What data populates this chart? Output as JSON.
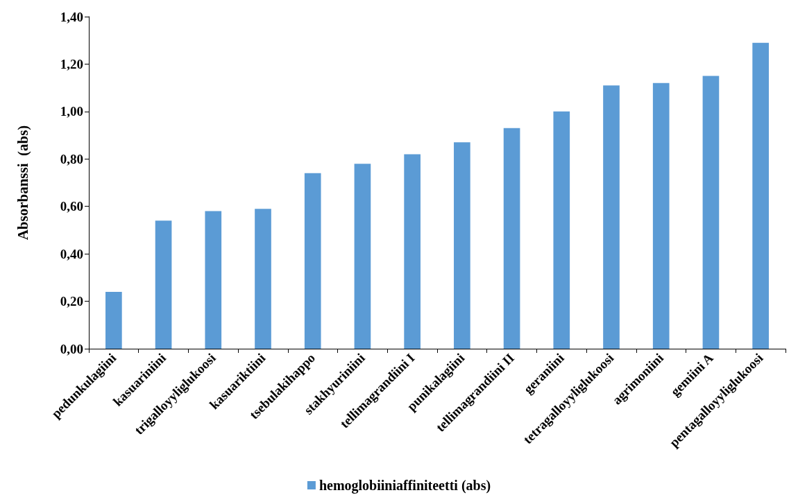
{
  "chart_data": {
    "type": "bar",
    "ylabel": "Absorbanssi  (abs)",
    "categories": [
      "pedunkulagiini",
      "kasuariniini",
      "trigalloyyliglukoosi",
      "kasuariktiini",
      "tsebulakihappo",
      "stakhyuriniini",
      "tellimagrandiini I",
      "punikalagiini",
      "tellimagrandiini II",
      "geraniini",
      "tetragalloyyliglukoosi",
      "agrimoniini",
      "gemiini A",
      "pentagalloyyliglukoosi"
    ],
    "series": [
      {
        "name": "hemoglobiiniaffiniteetti (abs)",
        "color": "#5b9bd5",
        "values": [
          0.24,
          0.54,
          0.58,
          0.59,
          0.74,
          0.78,
          0.82,
          0.87,
          0.93,
          1.0,
          1.11,
          1.12,
          1.15,
          1.29
        ]
      }
    ],
    "ylim": [
      0,
      1.4
    ],
    "yticks": [
      {
        "value": 0,
        "label": "0,00"
      },
      {
        "value": 0.2,
        "label": "0,20"
      },
      {
        "value": 0.4,
        "label": "0,40"
      },
      {
        "value": 0.6,
        "label": "0,60"
      },
      {
        "value": 0.8,
        "label": "0,80"
      },
      {
        "value": 1.0,
        "label": "1,00"
      },
      {
        "value": 1.2,
        "label": "1,20"
      },
      {
        "value": 1.4,
        "label": "1,40"
      }
    ],
    "grid": false,
    "legend": "bottom"
  }
}
